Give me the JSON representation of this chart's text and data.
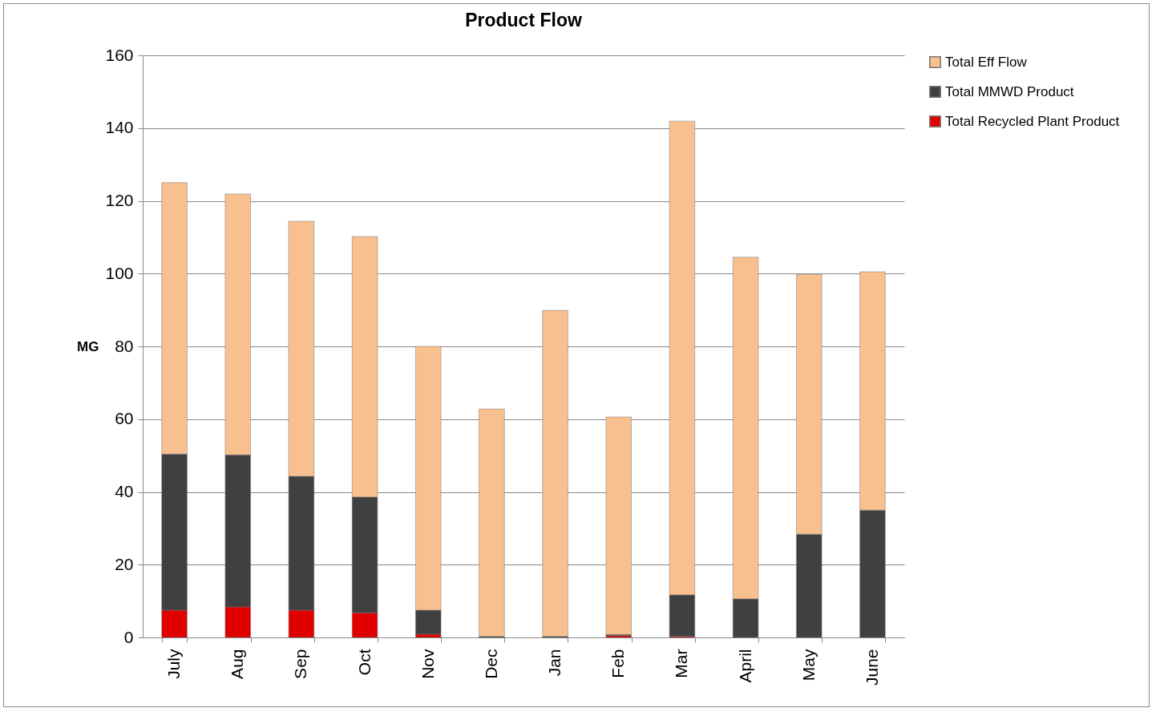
{
  "chart_data": {
    "type": "bar",
    "title": "Product Flow",
    "ylabel": "MG",
    "stacked": true,
    "categories": [
      "July",
      "Aug",
      "Sep",
      "Oct",
      "Nov",
      "Dec",
      "Jan",
      "Feb",
      "Mar",
      "April",
      "May",
      "June"
    ],
    "series": [
      {
        "name": "Total Recycled Plant Product",
        "color": "#e00000",
        "values": [
          7.5,
          8.4,
          7.5,
          6.8,
          0.9,
          0,
          0,
          0.5,
          0.3,
          0,
          0,
          0
        ]
      },
      {
        "name": "Total MMWD Product",
        "color": "#404040",
        "values": [
          42.9,
          41.8,
          36.8,
          31.8,
          6.6,
          0.3,
          0.3,
          0.3,
          11.4,
          10.6,
          28.4,
          35
        ]
      },
      {
        "name": "Total Eff Flow",
        "color": "#f9c08f",
        "values": [
          74.6,
          71.7,
          70.1,
          71.6,
          72.5,
          62.5,
          89.6,
          59.8,
          130.2,
          93.9,
          71.4,
          65.5
        ]
      }
    ],
    "ylim": [
      0,
      160
    ],
    "yticks": [
      0,
      20,
      40,
      60,
      80,
      100,
      120,
      140,
      160
    ],
    "grid": "y",
    "legend": "right"
  }
}
